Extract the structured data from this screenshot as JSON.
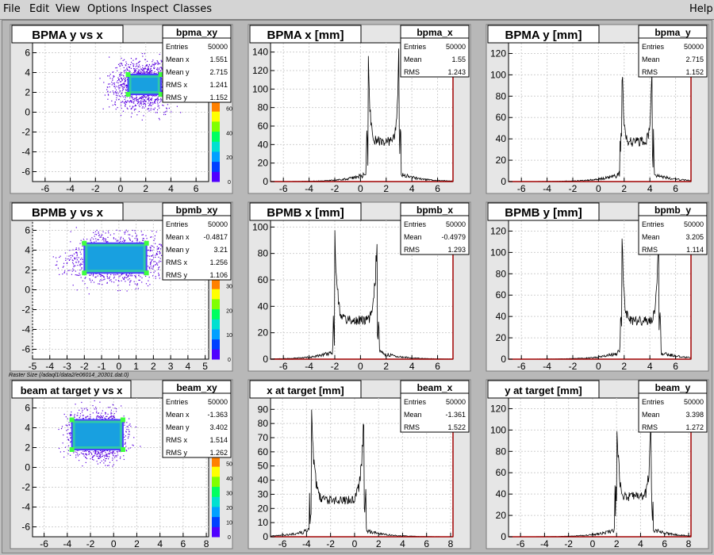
{
  "menu": {
    "file": "File",
    "edit": "Edit",
    "view": "View",
    "options": "Options",
    "inspect": "Inspect",
    "classes": "Classes",
    "help": "Help"
  },
  "caption": "Raster Size (/adaql1/data2/e06014_20301.dat.0)",
  "colors": {
    "frame": "#e6e6e6",
    "axes_bg": "#ffffff",
    "axis_right": "#a00000",
    "palette": [
      "#5000ff",
      "#0040ff",
      "#00a0ff",
      "#00e0d0",
      "#00ff60",
      "#80ff00",
      "#ffff00",
      "#ff8000"
    ]
  },
  "panels": [
    {
      "type": "hist2d",
      "title": "BPMA y vs x",
      "xlim": [
        -7,
        7
      ],
      "xticks": [
        -6,
        -4,
        -2,
        0,
        2,
        4,
        6
      ],
      "ylim": [
        -7,
        7
      ],
      "yticks": [
        -6,
        -4,
        -2,
        0,
        2,
        4,
        6
      ],
      "rect": [
        0.6,
        1.8,
        3.2,
        3.8
      ],
      "palette_ticks": [
        0,
        20,
        40,
        60
      ],
      "stats": {
        "name": "bpma_xy",
        "rows": [
          [
            "Entries",
            "50000"
          ],
          [
            "Mean x",
            "1.551"
          ],
          [
            "Mean y",
            "2.715"
          ],
          [
            "RMS x",
            "1.241"
          ],
          [
            "RMS y",
            "1.152"
          ]
        ]
      }
    },
    {
      "type": "hist1d",
      "title": "BPMA x [mm]",
      "xlim": [
        -7,
        7.2
      ],
      "xticks": [
        -6,
        -4,
        -2,
        0,
        2,
        4,
        6
      ],
      "ylim": [
        0,
        150
      ],
      "yticks": [
        0,
        20,
        40,
        60,
        80,
        100,
        120,
        140
      ],
      "edges": [
        0.6,
        3.0
      ],
      "peak": 146,
      "stats": {
        "name": "bpma_x",
        "rows": [
          [
            "Entries",
            "50000"
          ],
          [
            "Mean",
            "1.55"
          ],
          [
            "RMS",
            "1.243"
          ]
        ]
      }
    },
    {
      "type": "hist1d",
      "title": "BPMA y [mm]",
      "xlim": [
        -7,
        7.2
      ],
      "xticks": [
        -6,
        -4,
        -2,
        0,
        2,
        4,
        6
      ],
      "ylim": [
        0,
        130
      ],
      "yticks": [
        0,
        20,
        40,
        60,
        80,
        100,
        120
      ],
      "edges": [
        1.8,
        4.2
      ],
      "peak": 124,
      "stats": {
        "name": "bpma_y",
        "rows": [
          [
            "Entries",
            "50000"
          ],
          [
            "Mean",
            "2.715"
          ],
          [
            "RMS",
            "1.152"
          ]
        ]
      }
    },
    {
      "type": "hist2d",
      "title": "BPMB y vs x",
      "xlim": [
        -5,
        5.2
      ],
      "xticks": [
        -5,
        -4,
        -3,
        -2,
        -1,
        0,
        1,
        2,
        3,
        4,
        5
      ],
      "ylim": [
        -7,
        7
      ],
      "yticks": [
        -6,
        -4,
        -2,
        0,
        2,
        4,
        6
      ],
      "rect": [
        -2.0,
        1.7,
        1.6,
        4.7
      ],
      "palette_ticks": [
        0,
        10,
        20,
        30
      ],
      "stats": {
        "name": "bpmb_xy",
        "rows": [
          [
            "Entries",
            "50000"
          ],
          [
            "Mean x",
            "-0.4817"
          ],
          [
            "Mean y",
            "3.21"
          ],
          [
            "RMS x",
            "1.256"
          ],
          [
            "RMS y",
            "1.106"
          ]
        ]
      }
    },
    {
      "type": "hist1d",
      "title": "BPMB x [mm]",
      "xlim": [
        -7,
        7.2
      ],
      "xticks": [
        -6,
        -4,
        -2,
        0,
        2,
        4,
        6
      ],
      "ylim": [
        0,
        105
      ],
      "yticks": [
        0,
        20,
        40,
        60,
        80,
        100
      ],
      "edges": [
        -2.0,
        1.3
      ],
      "peak": 98,
      "stats": {
        "name": "bpmb_x",
        "rows": [
          [
            "Entries",
            "50000"
          ],
          [
            "Mean",
            "-0.4979"
          ],
          [
            "RMS",
            "1.293"
          ]
        ]
      }
    },
    {
      "type": "hist1d",
      "title": "BPMB y [mm]",
      "xlim": [
        -7,
        7.2
      ],
      "xticks": [
        -6,
        -4,
        -2,
        0,
        2,
        4,
        6
      ],
      "ylim": [
        0,
        130
      ],
      "yticks": [
        0,
        20,
        40,
        60,
        80,
        100,
        120
      ],
      "edges": [
        1.8,
        4.7
      ],
      "peak": 120,
      "stats": {
        "name": "bpmb_y",
        "rows": [
          [
            "Entries",
            "50000"
          ],
          [
            "Mean",
            "3.205"
          ],
          [
            "RMS",
            "1.114"
          ]
        ]
      }
    },
    {
      "type": "hist2d",
      "title": "beam at target y vs x",
      "xlim": [
        -7,
        8.2
      ],
      "xticks": [
        -6,
        -4,
        -2,
        0,
        2,
        4,
        6,
        8
      ],
      "ylim": [
        -7,
        7
      ],
      "yticks": [
        -6,
        -4,
        -2,
        0,
        2,
        4,
        6
      ],
      "rect": [
        -3.6,
        1.8,
        0.8,
        4.8
      ],
      "palette_ticks": [
        0,
        10,
        20,
        30,
        40,
        50
      ],
      "stats": {
        "name": "beam_xy",
        "rows": [
          [
            "Entries",
            "50000"
          ],
          [
            "Mean x",
            "-1.363"
          ],
          [
            "Mean y",
            "3.402"
          ],
          [
            "RMS x",
            "1.514"
          ],
          [
            "RMS y",
            "1.262"
          ]
        ]
      }
    },
    {
      "type": "hist1d",
      "title": "x at target [mm]",
      "xlim": [
        -7,
        8.2
      ],
      "xticks": [
        -6,
        -4,
        -2,
        0,
        2,
        4,
        6,
        8
      ],
      "ylim": [
        0,
        98
      ],
      "yticks": [
        0,
        10,
        20,
        30,
        40,
        50,
        60,
        70,
        80,
        90
      ],
      "edges": [
        -3.6,
        0.8
      ],
      "peak": 86,
      "stats": {
        "name": "beam_x",
        "rows": [
          [
            "Entries",
            "50000"
          ],
          [
            "Mean",
            "-1.361"
          ],
          [
            "RMS",
            "1.522"
          ]
        ]
      }
    },
    {
      "type": "hist1d",
      "title": "y at target [mm]",
      "xlim": [
        -7,
        8.2
      ],
      "xticks": [
        -6,
        -4,
        -2,
        0,
        2,
        4,
        6,
        8
      ],
      "ylim": [
        0,
        130
      ],
      "yticks": [
        0,
        20,
        40,
        60,
        80,
        100,
        120
      ],
      "edges": [
        2.0,
        4.9
      ],
      "peak": 124,
      "stats": {
        "name": "beam_y",
        "rows": [
          [
            "Entries",
            "50000"
          ],
          [
            "Mean",
            "3.398"
          ],
          [
            "RMS",
            "1.272"
          ]
        ]
      }
    }
  ]
}
